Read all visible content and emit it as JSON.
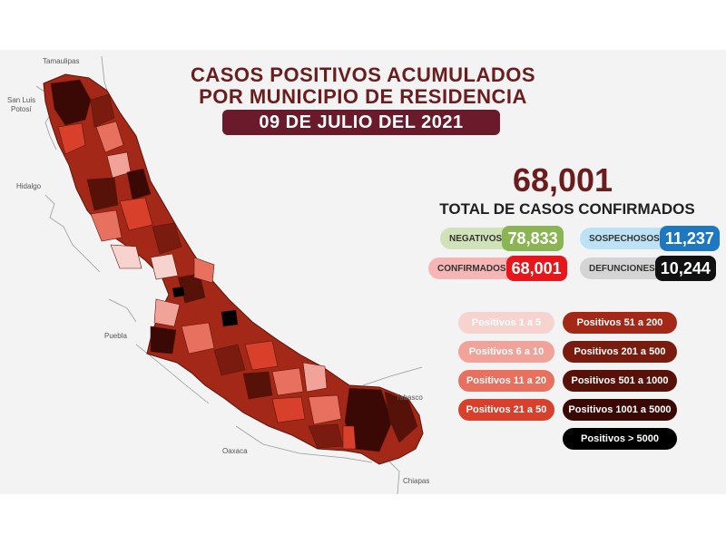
{
  "header": {
    "title_line1": "CASOS POSITIVOS ACUMULADOS",
    "title_line2": "POR MUNICIPIO DE RESIDENCIA",
    "date": "09 DE JULIO DEL 2021"
  },
  "summary": {
    "total": "68,001",
    "total_label": "TOTAL DE CASOS CONFIRMADOS"
  },
  "stats": {
    "negativos": {
      "label": "NEGATIVOS",
      "value": "78,833"
    },
    "sospechosos": {
      "label": "SOSPECHOSOS",
      "value": "11,237"
    },
    "confirmados": {
      "label": "CONFIRMADOS",
      "value": "68,001"
    },
    "defunciones": {
      "label": "DEFUNCIONES",
      "value": "10,244"
    }
  },
  "legend": [
    {
      "label": "Positivos 1 a 5",
      "color": "#f7d3d0"
    },
    {
      "label": "Positivos 6 a 10",
      "color": "#f2a399"
    },
    {
      "label": "Positivos 11 a 20",
      "color": "#e8705f"
    },
    {
      "label": "Positivos 21 a 50",
      "color": "#d9402c"
    },
    {
      "label": "Positivos 51 a 200",
      "color": "#a32817"
    },
    {
      "label": "Positivos 201 a 500",
      "color": "#7a1b10"
    },
    {
      "label": "Positivos 501 a 1000",
      "color": "#561109"
    },
    {
      "label": "Positivos 1001 a 5000",
      "color": "#3a0905"
    },
    {
      "label": "Positivos > 5000",
      "color": "#000000"
    }
  ],
  "neighbor_labels": {
    "tamaulipas": "Tamaulipas",
    "slp_line1": "San Luis",
    "slp_line2": "Potosí",
    "hidalgo": "Hidalgo",
    "puebla": "Puebla",
    "oaxaca": "Oaxaca",
    "tabasco": "Tabasco",
    "chiapas": "Chiapas"
  }
}
